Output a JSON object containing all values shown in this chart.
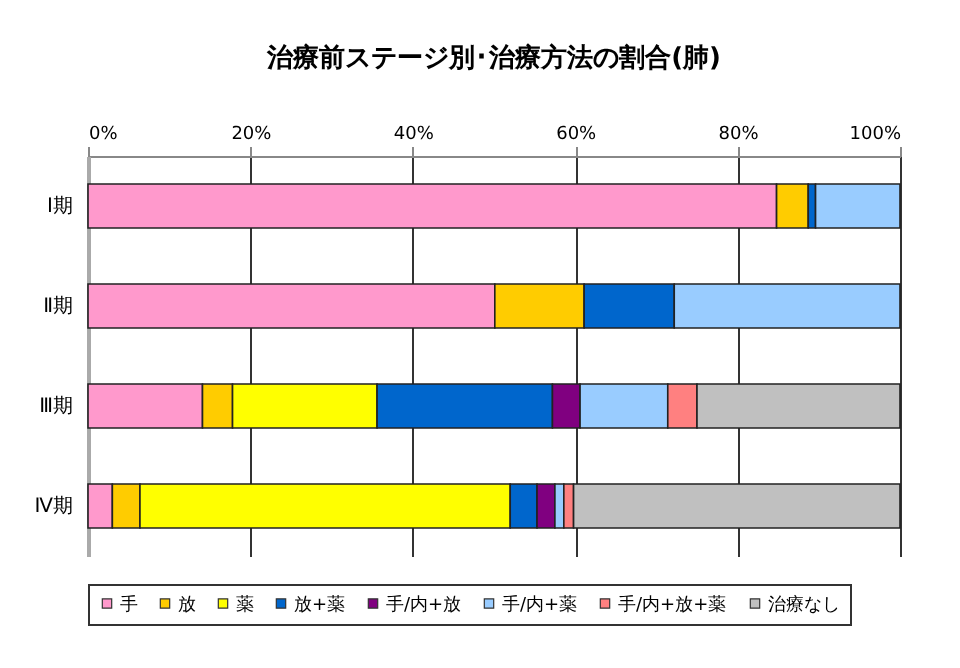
{
  "chart_data": {
    "type": "bar",
    "title": "治療前ステージ別･治療方法の割合(肺)",
    "orientation": "horizontal",
    "stacked": true,
    "categories": [
      "Ⅰ期",
      "Ⅱ期",
      "Ⅲ期",
      "Ⅳ期"
    ],
    "series": [
      {
        "name": "手",
        "color": "#ff99cc",
        "values": [
          84.8,
          50.1,
          14.1,
          3.0
        ]
      },
      {
        "name": "放",
        "color": "#ffcc00",
        "values": [
          3.9,
          11.0,
          3.7,
          3.4
        ]
      },
      {
        "name": "薬",
        "color": "#ffff00",
        "values": [
          null,
          null,
          17.8,
          45.6
        ]
      },
      {
        "name": "放+薬",
        "color": "#0066cc",
        "values": [
          0.9,
          11.1,
          21.6,
          3.3
        ]
      },
      {
        "name": "手/内+放",
        "color": "#800080",
        "values": [
          null,
          null,
          3.4,
          2.2
        ]
      },
      {
        "name": "手/内+薬",
        "color": "#99ccff",
        "values": [
          10.4,
          27.8,
          10.8,
          1.1
        ]
      },
      {
        "name": "手/内+放+薬",
        "color": "#ff8080",
        "values": [
          null,
          null,
          3.6,
          1.2
        ]
      },
      {
        "name": "治療なし",
        "color": "#c0c0c0",
        "values": [
          null,
          null,
          25.0,
          40.2
        ]
      }
    ],
    "xlim": [
      0,
      100
    ],
    "xticks": [
      {
        "value": 0,
        "label": "0%"
      },
      {
        "value": 20,
        "label": "20%"
      },
      {
        "value": 40,
        "label": "40%"
      },
      {
        "value": 60,
        "label": "60%"
      },
      {
        "value": 80,
        "label": "80%"
      },
      {
        "value": 100,
        "label": "100%"
      }
    ],
    "grid": "x",
    "legend": "bottom"
  }
}
